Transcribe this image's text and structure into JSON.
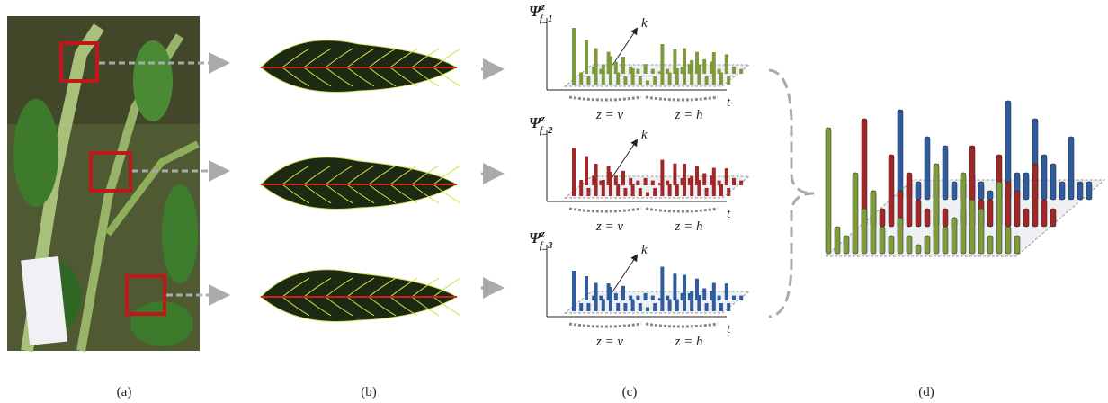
{
  "panels": [
    {
      "label": "(a)"
    },
    {
      "label": "(b)"
    },
    {
      "label": "(c)"
    },
    {
      "label": "(d)"
    }
  ],
  "histograms": [
    {
      "symbol": "Ψ",
      "superscript": "z",
      "subscript": "f_1",
      "axis_k": "k",
      "axis_t": "t",
      "groups": [
        "z = v",
        "z = h"
      ]
    },
    {
      "symbol": "Ψ",
      "superscript": "z",
      "subscript": "f_2",
      "axis_k": "k",
      "axis_t": "t",
      "groups": [
        "z = v",
        "z = h"
      ]
    },
    {
      "symbol": "Ψ",
      "superscript": "z",
      "subscript": "f_3",
      "axis_k": "k",
      "axis_t": "t",
      "groups": [
        "z = v",
        "z = h"
      ]
    }
  ]
}
